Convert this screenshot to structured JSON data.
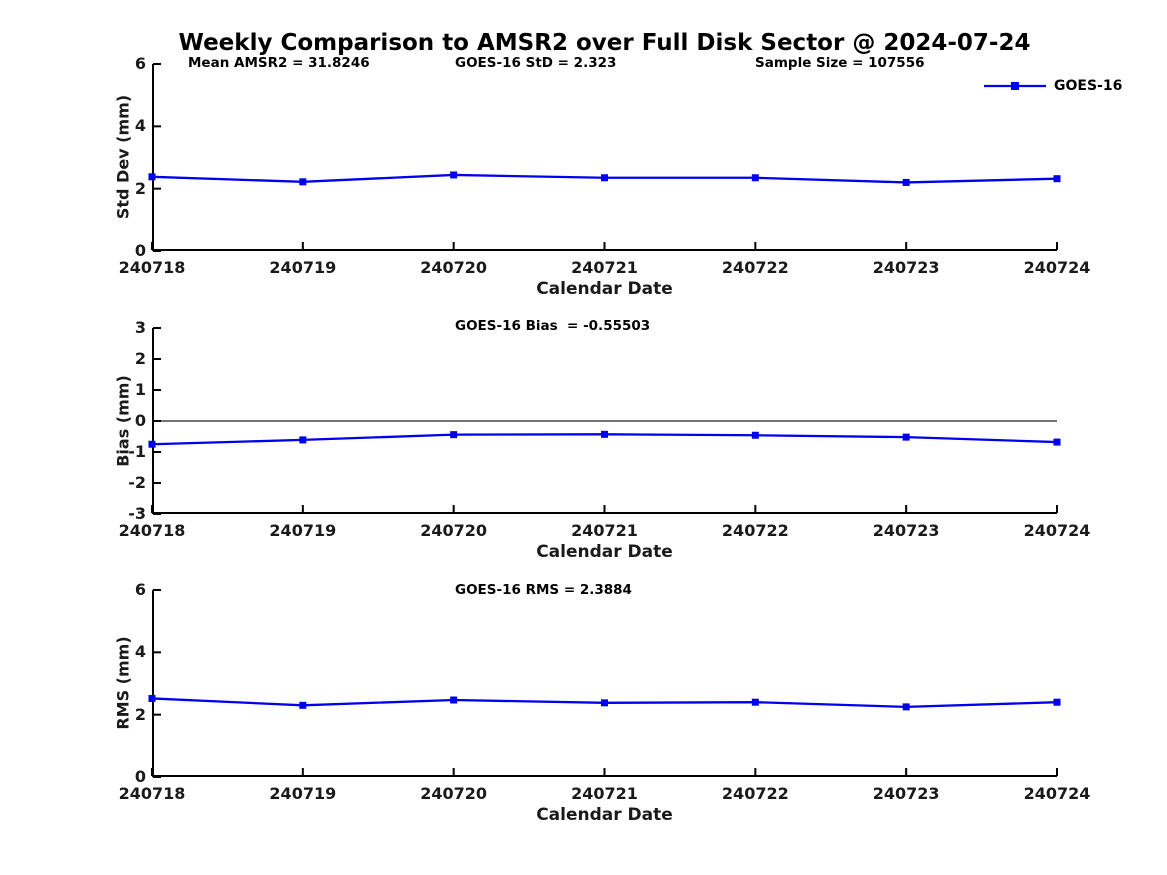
{
  "title": "Weekly Comparison to AMSR2 over Full Disk Sector @ 2024-07-24",
  "legend": {
    "label": "GOES-16"
  },
  "colors": {
    "series": "#0000ee",
    "zero_line": "#737373",
    "axis": "#000000",
    "tick_label": "#1a1a1a"
  },
  "chart_data": [
    {
      "type": "line",
      "ylabel": "Std Dev (mm)",
      "xlabel": "Calendar Date",
      "categories": [
        "240718",
        "240719",
        "240720",
        "240721",
        "240722",
        "240723",
        "240724"
      ],
      "series": [
        {
          "name": "GOES-16",
          "values": [
            2.38,
            2.22,
            2.44,
            2.35,
            2.35,
            2.2,
            2.32
          ]
        }
      ],
      "ylim": [
        0,
        6
      ],
      "yticks": [
        0,
        2,
        4,
        6
      ],
      "zero_line": false,
      "grid": false,
      "legend_position": "top-right-outside",
      "annotations": [
        "Mean AMSR2 = 31.8246",
        "GOES-16 StD = 2.323",
        "Sample Size = 107556"
      ]
    },
    {
      "type": "line",
      "ylabel": "Bias (mm)",
      "xlabel": "Calendar Date",
      "categories": [
        "240718",
        "240719",
        "240720",
        "240721",
        "240722",
        "240723",
        "240724"
      ],
      "series": [
        {
          "name": "GOES-16",
          "values": [
            -0.75,
            -0.61,
            -0.44,
            -0.43,
            -0.46,
            -0.52,
            -0.68
          ]
        }
      ],
      "ylim": [
        -3,
        3
      ],
      "yticks": [
        -3,
        -2,
        -1,
        0,
        1,
        2,
        3
      ],
      "zero_line": true,
      "grid": false,
      "annotations": [
        "GOES-16 Bias  = -0.55503"
      ]
    },
    {
      "type": "line",
      "ylabel": "RMS (mm)",
      "xlabel": "Calendar Date",
      "categories": [
        "240718",
        "240719",
        "240720",
        "240721",
        "240722",
        "240723",
        "240724"
      ],
      "series": [
        {
          "name": "GOES-16",
          "values": [
            2.52,
            2.3,
            2.47,
            2.38,
            2.4,
            2.25,
            2.4
          ]
        }
      ],
      "ylim": [
        0,
        6
      ],
      "yticks": [
        0,
        2,
        4,
        6
      ],
      "zero_line": false,
      "grid": false,
      "annotations": [
        "GOES-16 RMS = 2.3884"
      ]
    }
  ]
}
